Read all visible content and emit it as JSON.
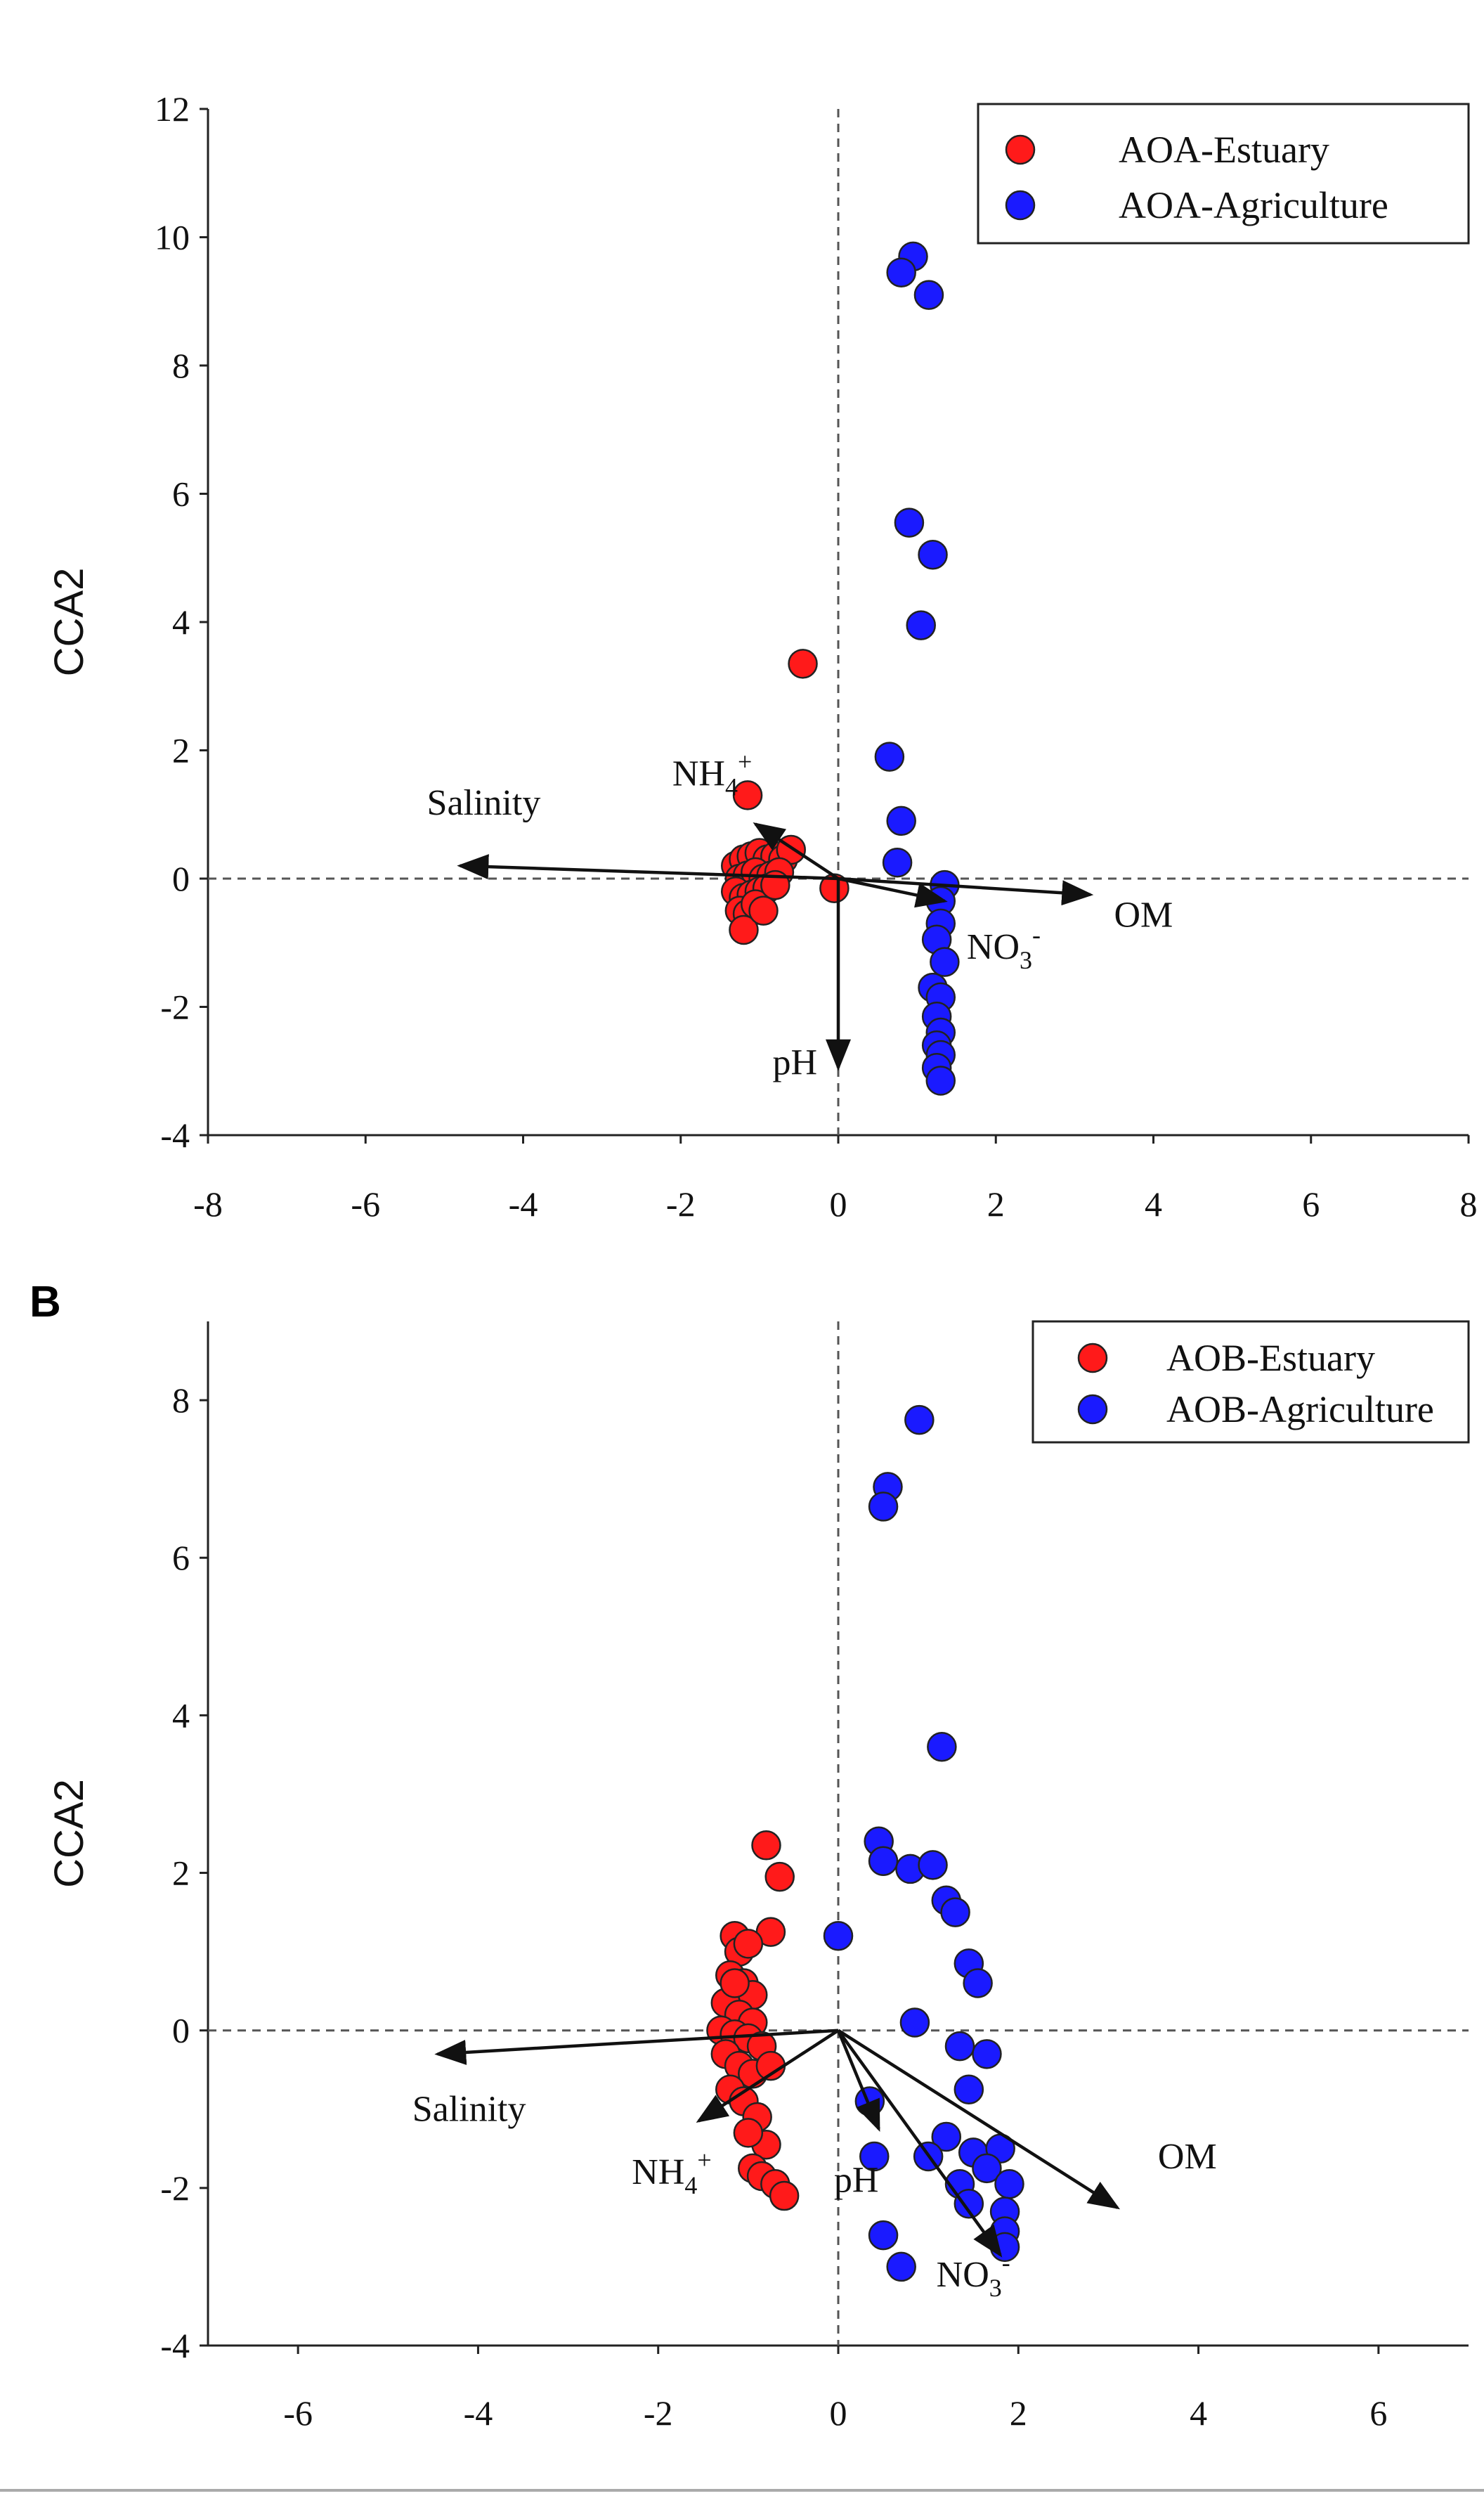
{
  "chart_data": [
    {
      "panel": "A",
      "panel_label": "",
      "type": "scatter",
      "xlabel": "",
      "ylabel": "CCA2",
      "xlim": [
        -8,
        8
      ],
      "ylim": [
        -4,
        12
      ],
      "xticks": [
        -8,
        -6,
        -4,
        -2,
        0,
        2,
        4,
        6,
        8
      ],
      "yticks": [
        -4,
        -2,
        0,
        2,
        4,
        6,
        8,
        10,
        12
      ],
      "grid": false,
      "reference_lines": {
        "x": 0,
        "y": 0,
        "style": "dashed"
      },
      "legend": {
        "position": "top-right",
        "entries": [
          "AOA-Estuary",
          "AOA-Agriculture"
        ]
      },
      "colors": {
        "estuary": "#ff1a1a",
        "agriculture": "#1a1aff"
      },
      "series": [
        {
          "name": "AOA-Estuary",
          "color": "#ff1a1a",
          "points": [
            [
              -1.15,
              1.3
            ],
            [
              -0.45,
              3.35
            ],
            [
              -0.05,
              -0.15
            ],
            [
              -1.3,
              0.2
            ],
            [
              -1.2,
              0.3
            ],
            [
              -1.1,
              0.35
            ],
            [
              -1.0,
              0.4
            ],
            [
              -0.9,
              0.3
            ],
            [
              -0.8,
              0.35
            ],
            [
              -0.7,
              0.3
            ],
            [
              -0.6,
              0.45
            ],
            [
              -1.25,
              0.0
            ],
            [
              -1.15,
              0.05
            ],
            [
              -1.05,
              0.1
            ],
            [
              -0.95,
              0.0
            ],
            [
              -0.85,
              0.05
            ],
            [
              -0.75,
              0.1
            ],
            [
              -1.3,
              -0.2
            ],
            [
              -1.2,
              -0.3
            ],
            [
              -1.1,
              -0.25
            ],
            [
              -1.0,
              -0.2
            ],
            [
              -0.9,
              -0.15
            ],
            [
              -1.25,
              -0.5
            ],
            [
              -1.15,
              -0.55
            ],
            [
              -1.05,
              -0.4
            ],
            [
              -1.2,
              -0.8
            ],
            [
              -0.95,
              -0.5
            ],
            [
              -0.8,
              -0.1
            ]
          ]
        },
        {
          "name": "AOA-Agriculture",
          "color": "#1a1aff",
          "points": [
            [
              0.95,
              9.7
            ],
            [
              0.8,
              9.45
            ],
            [
              1.15,
              9.1
            ],
            [
              0.9,
              5.55
            ],
            [
              1.2,
              5.05
            ],
            [
              1.05,
              3.95
            ],
            [
              0.65,
              1.9
            ],
            [
              0.8,
              0.9
            ],
            [
              0.75,
              0.25
            ],
            [
              1.35,
              -0.1
            ],
            [
              1.3,
              -0.35
            ],
            [
              1.3,
              -0.7
            ],
            [
              1.25,
              -0.95
            ],
            [
              1.35,
              -1.3
            ],
            [
              1.2,
              -1.7
            ],
            [
              1.3,
              -1.85
            ],
            [
              1.25,
              -2.15
            ],
            [
              1.3,
              -2.4
            ],
            [
              1.25,
              -2.6
            ],
            [
              1.3,
              -2.75
            ],
            [
              1.25,
              -2.95
            ],
            [
              1.3,
              -3.15
            ]
          ]
        }
      ],
      "vectors": [
        {
          "label": "Salinity",
          "end": [
            -4.8,
            0.2
          ],
          "label_at": [
            -4.5,
            1.0
          ],
          "label_anchor": "middle"
        },
        {
          "label": "OM",
          "end": [
            3.2,
            -0.25
          ],
          "label_at": [
            3.5,
            -0.75
          ],
          "label_anchor": "start"
        },
        {
          "label": "pH",
          "end": [
            0.0,
            -2.95
          ],
          "label_at": [
            -0.55,
            -3.05
          ],
          "label_anchor": "middle"
        },
        {
          "label": "NH4+",
          "end": [
            -1.05,
            0.85
          ],
          "label_at": [
            -1.6,
            1.45
          ],
          "label_anchor": "middle"
        },
        {
          "label": "NO3-",
          "end": [
            1.35,
            -0.35
          ],
          "label_at": [
            2.1,
            -1.25
          ],
          "label_anchor": "middle"
        }
      ]
    },
    {
      "panel": "B",
      "panel_label": "B",
      "type": "scatter",
      "xlabel": "",
      "ylabel": "CCA2",
      "xlim": [
        -7,
        7
      ],
      "ylim": [
        -4,
        9
      ],
      "xticks": [
        -6,
        -4,
        -2,
        0,
        2,
        4,
        6
      ],
      "yticks": [
        -4,
        -2,
        0,
        2,
        4,
        6,
        8
      ],
      "grid": false,
      "reference_lines": {
        "x": 0,
        "y": 0,
        "style": "dashed"
      },
      "legend": {
        "position": "top-right",
        "entries": [
          "AOB-Estuary",
          "AOB-Agriculture"
        ]
      },
      "colors": {
        "estuary": "#ff1a1a",
        "agriculture": "#1a1aff"
      },
      "series": [
        {
          "name": "AOB-Estuary",
          "color": "#ff1a1a",
          "points": [
            [
              -0.8,
              2.35
            ],
            [
              -0.65,
              1.95
            ],
            [
              -0.75,
              1.25
            ],
            [
              -1.15,
              1.2
            ],
            [
              -1.1,
              1.0
            ],
            [
              -1.0,
              1.1
            ],
            [
              -1.2,
              0.7
            ],
            [
              -1.05,
              0.6
            ],
            [
              -0.95,
              0.45
            ],
            [
              -1.25,
              0.35
            ],
            [
              -1.1,
              0.2
            ],
            [
              -0.95,
              0.1
            ],
            [
              -1.3,
              0.0
            ],
            [
              -1.15,
              -0.05
            ],
            [
              -1.0,
              -0.1
            ],
            [
              -0.85,
              -0.2
            ],
            [
              -1.25,
              -0.3
            ],
            [
              -1.1,
              -0.45
            ],
            [
              -0.95,
              -0.55
            ],
            [
              -0.75,
              -0.45
            ],
            [
              -1.2,
              -0.75
            ],
            [
              -1.05,
              -0.9
            ],
            [
              -0.9,
              -1.1
            ],
            [
              -0.8,
              -1.45
            ],
            [
              -0.95,
              -1.75
            ],
            [
              -0.85,
              -1.85
            ],
            [
              -0.7,
              -1.95
            ],
            [
              -0.6,
              -2.1
            ],
            [
              -1.15,
              0.6
            ],
            [
              -1.0,
              -1.3
            ]
          ]
        },
        {
          "name": "AOB-Agriculture",
          "color": "#1a1aff",
          "points": [
            [
              0.9,
              7.75
            ],
            [
              0.55,
              6.9
            ],
            [
              0.5,
              6.65
            ],
            [
              1.15,
              3.6
            ],
            [
              0.45,
              2.4
            ],
            [
              0.5,
              2.15
            ],
            [
              0.8,
              2.05
            ],
            [
              1.05,
              2.1
            ],
            [
              1.2,
              1.65
            ],
            [
              1.3,
              1.5
            ],
            [
              0.0,
              1.2
            ],
            [
              1.45,
              0.85
            ],
            [
              1.55,
              0.6
            ],
            [
              0.85,
              0.1
            ],
            [
              1.35,
              -0.2
            ],
            [
              1.65,
              -0.3
            ],
            [
              1.45,
              -0.75
            ],
            [
              0.35,
              -0.9
            ],
            [
              1.2,
              -1.35
            ],
            [
              0.4,
              -1.6
            ],
            [
              1.5,
              -1.55
            ],
            [
              1.8,
              -1.5
            ],
            [
              1.65,
              -1.75
            ],
            [
              1.35,
              -1.95
            ],
            [
              1.9,
              -1.95
            ],
            [
              1.45,
              -2.2
            ],
            [
              1.85,
              -2.3
            ],
            [
              1.85,
              -2.55
            ],
            [
              1.85,
              -2.75
            ],
            [
              0.5,
              -2.6
            ],
            [
              0.7,
              -3.0
            ],
            [
              1.0,
              -1.6
            ]
          ]
        }
      ],
      "vectors": [
        {
          "label": "Salinity",
          "end": [
            -4.45,
            -0.3
          ],
          "label_at": [
            -4.1,
            -1.15
          ],
          "label_anchor": "middle"
        },
        {
          "label": "OM",
          "end": [
            3.1,
            -2.25
          ],
          "label_at": [
            3.55,
            -1.75
          ],
          "label_anchor": "start"
        },
        {
          "label": "pH",
          "end": [
            0.45,
            -1.25
          ],
          "label_at": [
            0.2,
            -2.05
          ],
          "label_anchor": "middle"
        },
        {
          "label": "NH4+",
          "end": [
            -1.55,
            -1.15
          ],
          "label_at": [
            -1.85,
            -1.95
          ],
          "label_anchor": "middle"
        },
        {
          "label": "NO3-",
          "end": [
            1.8,
            -2.85
          ],
          "label_at": [
            1.5,
            -3.25
          ],
          "label_anchor": "middle"
        }
      ]
    }
  ]
}
